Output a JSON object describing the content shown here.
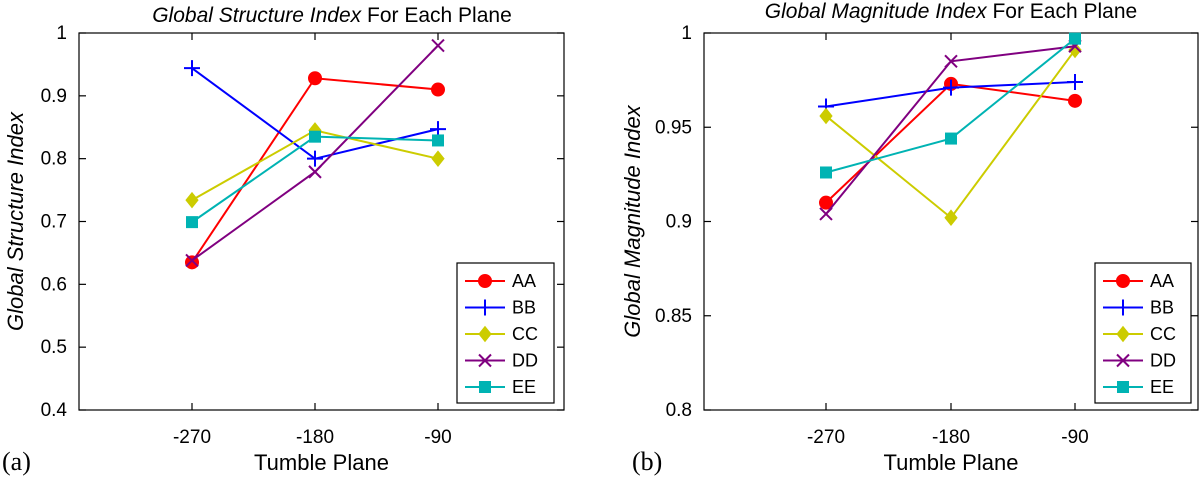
{
  "chart_data": [
    {
      "type": "line",
      "panel_label": "(a)",
      "title_italic": "Global Structure Index",
      "title_rest": " For Each Plane",
      "xlabel": "Tumble Plane",
      "ylabel": "Global Structure Index",
      "categories": [
        "-270",
        "-180",
        "-90"
      ],
      "ylim": [
        0.4,
        1.0
      ],
      "yticks": [
        "0.4",
        "0.5",
        "0.6",
        "0.7",
        "0.8",
        "0.9",
        "1"
      ],
      "legend_position": "bottom-right",
      "series": [
        {
          "name": "AA",
          "values": [
            0.635,
            0.928,
            0.91
          ]
        },
        {
          "name": "BB",
          "values": [
            0.944,
            0.8,
            0.847
          ]
        },
        {
          "name": "CC",
          "values": [
            0.734,
            0.845,
            0.8
          ]
        },
        {
          "name": "DD",
          "values": [
            0.638,
            0.779,
            0.98
          ]
        },
        {
          "name": "EE",
          "values": [
            0.699,
            0.835,
            0.829
          ]
        }
      ]
    },
    {
      "type": "line",
      "panel_label": "(b)",
      "title_italic": "Global Magnitude Index",
      "title_rest": " For Each Plane",
      "xlabel": "Tumble Plane",
      "ylabel": "Global Magnitude Index",
      "categories": [
        "-270",
        "-180",
        "-90"
      ],
      "ylim": [
        0.8,
        1.0
      ],
      "yticks": [
        "0.8",
        "0.85",
        "0.9",
        "0.95",
        "1"
      ],
      "legend_position": "bottom-right",
      "series": [
        {
          "name": "AA",
          "values": [
            0.91,
            0.973,
            0.964
          ]
        },
        {
          "name": "BB",
          "values": [
            0.961,
            0.971,
            0.974
          ]
        },
        {
          "name": "CC",
          "values": [
            0.956,
            0.902,
            0.991
          ]
        },
        {
          "name": "DD",
          "values": [
            0.904,
            0.985,
            0.993
          ]
        },
        {
          "name": "EE",
          "values": [
            0.926,
            0.944,
            0.997
          ]
        }
      ]
    }
  ],
  "series_styles": [
    {
      "name": "AA",
      "color": "#ff0000",
      "marker": "circle"
    },
    {
      "name": "BB",
      "color": "#0000ff",
      "marker": "plus"
    },
    {
      "name": "CC",
      "color": "#cccc00",
      "marker": "diamond"
    },
    {
      "name": "DD",
      "color": "#800080",
      "marker": "x"
    },
    {
      "name": "EE",
      "color": "#00b3b3",
      "marker": "square"
    }
  ]
}
